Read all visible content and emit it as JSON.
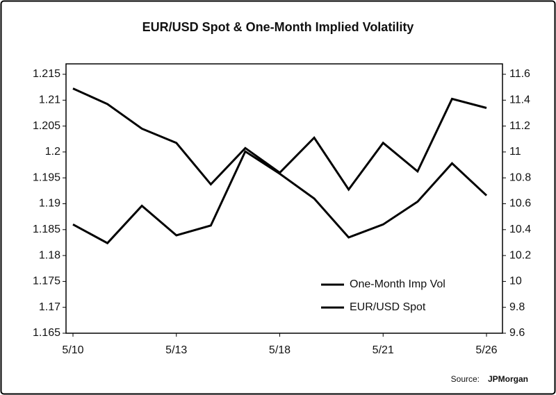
{
  "chart_data": {
    "type": "line",
    "title": "EUR/USD Spot & One-Month Implied Volatility",
    "categories": [
      "5/10",
      null,
      null,
      "5/13",
      null,
      null,
      "5/18",
      null,
      null,
      "5/21",
      null,
      null,
      "5/26"
    ],
    "series": [
      {
        "name": "One-Month Imp Vol",
        "color": "#000000",
        "axis": "y2",
        "values": [
          11.49,
          11.37,
          11.18,
          11.07,
          10.75,
          11.03,
          10.84,
          11.11,
          10.71,
          11.07,
          10.85,
          11.41,
          11.34
        ]
      },
      {
        "name": "EUR/USD Spot",
        "color": "#000000",
        "values": [
          1.186,
          1.1824,
          1.1896,
          1.1839,
          1.1858,
          1.2001,
          1.1958,
          1.191,
          1.1835,
          1.186,
          1.1904,
          1.1978,
          1.1916
        ]
      }
    ],
    "ylim": [
      1.165,
      1.215
    ],
    "yticks": [
      1.165,
      1.17,
      1.175,
      1.18,
      1.185,
      1.19,
      1.195,
      1.2,
      1.205,
      1.21,
      1.215
    ],
    "y2lim": [
      9.6,
      11.6
    ],
    "y2ticks": [
      9.6,
      9.8,
      10,
      10.2,
      10.4,
      10.6,
      10.8,
      11,
      11.2,
      11.4,
      11.6
    ],
    "legend": "lower right",
    "source_label": "Source:",
    "source": "JPMorgan"
  }
}
